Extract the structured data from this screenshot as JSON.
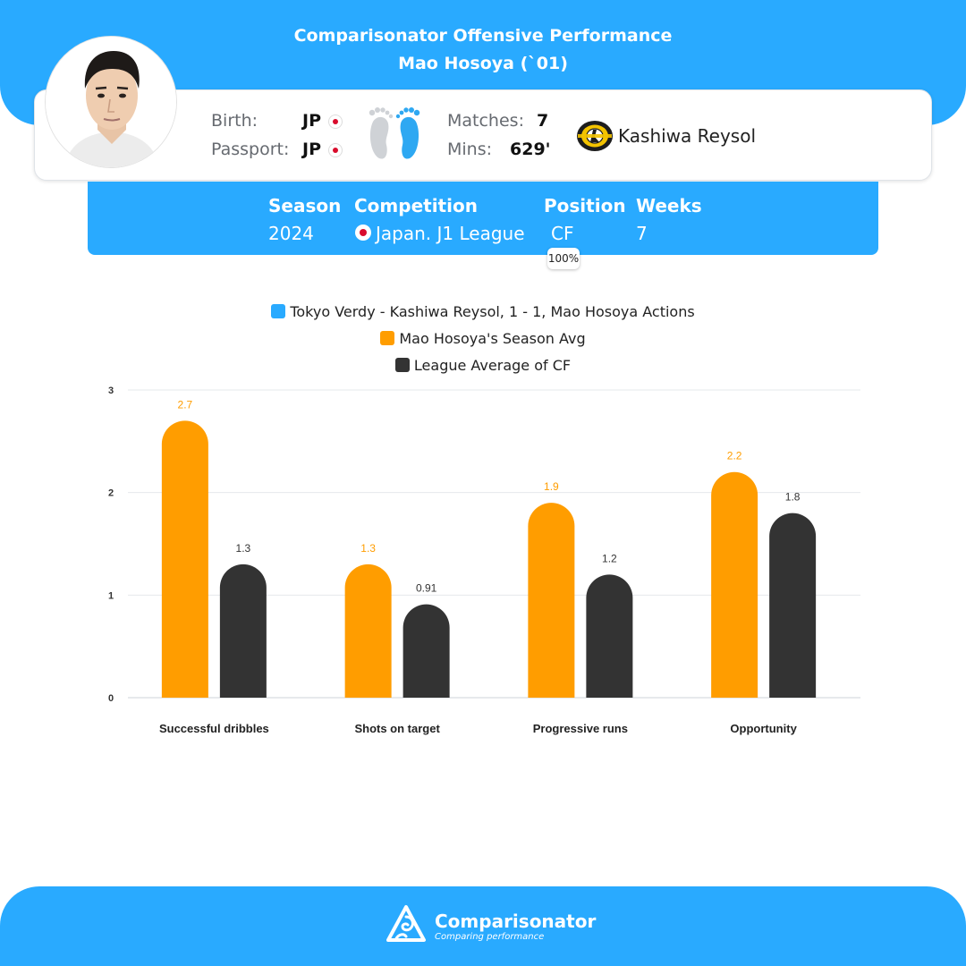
{
  "header": {
    "title": "Comparisonator Offensive Performance",
    "player_title": "Mao Hosoya (`01)"
  },
  "player": {
    "birth_label": "Birth:",
    "birth_value": "JP",
    "passport_label": "Passport:",
    "passport_value": "JP",
    "matches_label": "Matches:",
    "matches_value": "7",
    "mins_label": "Mins:",
    "mins_value": "629'",
    "club": "Kashiwa Reysol",
    "icons": [
      "player-photo",
      "japan-flag-icon",
      "feet-icon",
      "club-crest-icon"
    ]
  },
  "season_info": {
    "season_header": "Season",
    "season_value": "2024",
    "competition_header": "Competition",
    "competition_value": "Japan. J1 League",
    "position_header": "Position",
    "position_value": "CF",
    "position_pct": "100%",
    "weeks_header": "Weeks",
    "weeks_value": "7"
  },
  "legend": [
    {
      "label": "Tokyo Verdy - Kashiwa Reysol, 1 - 1, Mao Hosoya Actions",
      "color": "#29aaff"
    },
    {
      "label": "Mao Hosoya's Season Avg",
      "color": "#ff9d00"
    },
    {
      "label": "League Average of CF",
      "color": "#333333"
    }
  ],
  "chart_data": {
    "type": "bar",
    "categories": [
      "Successful dribbles",
      "Shots on target",
      "Progressive runs",
      "Opportunity"
    ],
    "series": [
      {
        "name": "Tokyo Verdy - Kashiwa Reysol, 1 - 1, Mao Hosoya Actions",
        "values": [
          0,
          0,
          0,
          0
        ],
        "color": "#29aaff"
      },
      {
        "name": "Mao Hosoya's Season Avg",
        "values": [
          2.7,
          1.3,
          1.9,
          2.2
        ],
        "labels": [
          "2.7",
          "1.3",
          "1.9",
          "2.2"
        ],
        "color": "#ff9d00"
      },
      {
        "name": "League Average of CF",
        "values": [
          1.3,
          0.91,
          1.2,
          1.8
        ],
        "labels": [
          "1.3",
          "0.91",
          "1.2",
          "1.8"
        ],
        "color": "#333333"
      }
    ],
    "yticks": [
      "0",
      "1",
      "2",
      "3"
    ],
    "ylim": [
      0,
      3
    ],
    "grid": true,
    "legend_position": "top-center",
    "title": "",
    "xlabel": "",
    "ylabel": ""
  },
  "footer": {
    "brand": "Comparisonator",
    "tagline": "Comparing performance"
  }
}
